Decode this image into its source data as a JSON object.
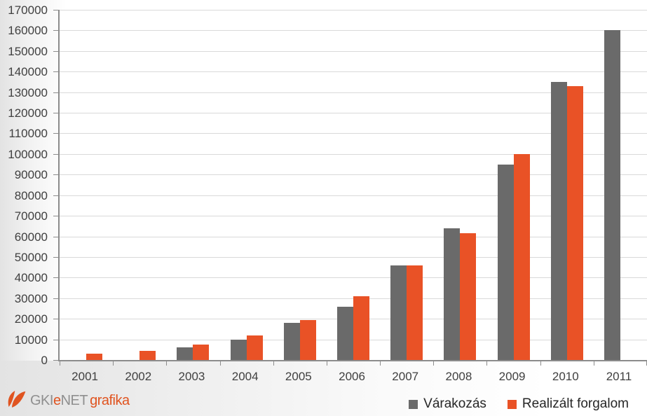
{
  "chart_data": {
    "type": "bar",
    "categories": [
      "2001",
      "2002",
      "2003",
      "2004",
      "2005",
      "2006",
      "2007",
      "2008",
      "2009",
      "2010",
      "2011"
    ],
    "series": [
      {
        "name": "Várakozás",
        "color": "#6a6a6a",
        "values": [
          null,
          null,
          6000,
          10000,
          18000,
          26000,
          46000,
          64000,
          95000,
          135000,
          160000
        ]
      },
      {
        "name": "Realizált forgalom",
        "color": "#e95226",
        "values": [
          3000,
          4500,
          7500,
          12000,
          19500,
          31000,
          46000,
          61500,
          100000,
          133000,
          null
        ]
      }
    ],
    "title": "",
    "xlabel": "",
    "ylabel": "",
    "ylim": [
      0,
      170000
    ],
    "ytick_step": 10000,
    "grid": true,
    "legend_position": "bottom-right"
  },
  "legend": {
    "series1_label": "Várakozás",
    "series2_label": "Realizált forgalom"
  },
  "logo": {
    "part1": "GKI",
    "part2": "e",
    "part3": "NET",
    "part4": "grafika"
  },
  "colors": {
    "bar_gray": "#6a6a6a",
    "bar_orange": "#e95226",
    "gridline": "#d9d9d9",
    "axis": "#8c8c8c",
    "axis_text": "#404040",
    "legend_text": "#262626",
    "logo_orange": "#e05420",
    "logo_gray": "#8f8f8f"
  }
}
